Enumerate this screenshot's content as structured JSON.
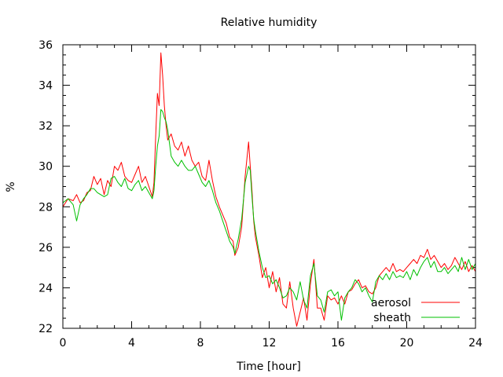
{
  "chart_data": {
    "type": "line",
    "title": "Relative humidity",
    "xlabel": "Time [hour]",
    "ylabel": "%",
    "xlim": [
      0,
      24
    ],
    "ylim": [
      22,
      36
    ],
    "x_ticks": [
      "0",
      "4",
      "8",
      "12",
      "16",
      "20",
      "24"
    ],
    "y_ticks": [
      "22",
      "24",
      "26",
      "28",
      "30",
      "32",
      "34",
      "36"
    ],
    "grid": false,
    "legend_position": "bottom-right",
    "series": [
      {
        "name": "aerosol",
        "color": "#ff0000",
        "points": [
          [
            0,
            28.0
          ],
          [
            0.3,
            28.4
          ],
          [
            0.6,
            28.3
          ],
          [
            0.8,
            28.6
          ],
          [
            1.0,
            28.2
          ],
          [
            1.2,
            28.3
          ],
          [
            1.4,
            28.7
          ],
          [
            1.6,
            28.8
          ],
          [
            1.8,
            29.5
          ],
          [
            2.0,
            29.1
          ],
          [
            2.2,
            29.4
          ],
          [
            2.4,
            28.6
          ],
          [
            2.6,
            29.3
          ],
          [
            2.8,
            29.0
          ],
          [
            3.0,
            30.0
          ],
          [
            3.2,
            29.8
          ],
          [
            3.4,
            30.2
          ],
          [
            3.6,
            29.5
          ],
          [
            3.8,
            29.3
          ],
          [
            4.0,
            29.2
          ],
          [
            4.2,
            29.6
          ],
          [
            4.4,
            30.0
          ],
          [
            4.6,
            29.2
          ],
          [
            4.8,
            29.5
          ],
          [
            5.0,
            29.0
          ],
          [
            5.2,
            28.5
          ],
          [
            5.3,
            29.2
          ],
          [
            5.4,
            31.5
          ],
          [
            5.5,
            33.6
          ],
          [
            5.6,
            33.0
          ],
          [
            5.7,
            35.6
          ],
          [
            5.8,
            34.5
          ],
          [
            5.9,
            33.0
          ],
          [
            6.0,
            32.0
          ],
          [
            6.1,
            31.3
          ],
          [
            6.3,
            31.6
          ],
          [
            6.5,
            31.0
          ],
          [
            6.7,
            30.8
          ],
          [
            6.9,
            31.2
          ],
          [
            7.1,
            30.5
          ],
          [
            7.3,
            31.0
          ],
          [
            7.5,
            30.3
          ],
          [
            7.7,
            30.0
          ],
          [
            7.9,
            30.2
          ],
          [
            8.1,
            29.5
          ],
          [
            8.3,
            29.3
          ],
          [
            8.5,
            30.3
          ],
          [
            8.7,
            29.3
          ],
          [
            8.9,
            28.5
          ],
          [
            9.1,
            28.0
          ],
          [
            9.3,
            27.6
          ],
          [
            9.5,
            27.2
          ],
          [
            9.7,
            26.5
          ],
          [
            9.9,
            26.3
          ],
          [
            10.0,
            25.6
          ],
          [
            10.2,
            26.0
          ],
          [
            10.4,
            27.0
          ],
          [
            10.6,
            29.5
          ],
          [
            10.8,
            31.2
          ],
          [
            10.9,
            30.0
          ],
          [
            11.0,
            28.8
          ],
          [
            11.1,
            27.3
          ],
          [
            11.2,
            26.5
          ],
          [
            11.4,
            25.6
          ],
          [
            11.6,
            24.5
          ],
          [
            11.8,
            25.0
          ],
          [
            12.0,
            24.0
          ],
          [
            12.2,
            24.8
          ],
          [
            12.4,
            23.8
          ],
          [
            12.6,
            24.5
          ],
          [
            12.8,
            23.2
          ],
          [
            13.0,
            23.0
          ],
          [
            13.2,
            24.3
          ],
          [
            13.4,
            23.0
          ],
          [
            13.6,
            22.1
          ],
          [
            13.8,
            22.8
          ],
          [
            14.0,
            23.5
          ],
          [
            14.2,
            22.4
          ],
          [
            14.4,
            24.2
          ],
          [
            14.6,
            25.4
          ],
          [
            14.8,
            23.0
          ],
          [
            15.0,
            23.0
          ],
          [
            15.2,
            22.4
          ],
          [
            15.4,
            23.6
          ],
          [
            15.6,
            23.4
          ],
          [
            15.8,
            23.5
          ],
          [
            16.0,
            23.2
          ],
          [
            16.2,
            23.6
          ],
          [
            16.4,
            23.2
          ],
          [
            16.6,
            23.8
          ],
          [
            16.8,
            23.9
          ],
          [
            17.0,
            24.2
          ],
          [
            17.2,
            24.4
          ],
          [
            17.4,
            24.0
          ],
          [
            17.6,
            24.1
          ],
          [
            17.8,
            23.8
          ],
          [
            18.0,
            23.7
          ],
          [
            18.2,
            24.0
          ],
          [
            18.4,
            24.6
          ],
          [
            18.6,
            24.8
          ],
          [
            18.8,
            25.0
          ],
          [
            19.0,
            24.8
          ],
          [
            19.2,
            25.2
          ],
          [
            19.4,
            24.8
          ],
          [
            19.6,
            24.9
          ],
          [
            19.8,
            24.8
          ],
          [
            20.0,
            25.0
          ],
          [
            20.2,
            25.2
          ],
          [
            20.4,
            25.4
          ],
          [
            20.6,
            25.2
          ],
          [
            20.8,
            25.6
          ],
          [
            21.0,
            25.5
          ],
          [
            21.2,
            25.9
          ],
          [
            21.4,
            25.4
          ],
          [
            21.6,
            25.6
          ],
          [
            21.8,
            25.3
          ],
          [
            22.0,
            25.0
          ],
          [
            22.2,
            25.2
          ],
          [
            22.4,
            24.9
          ],
          [
            22.6,
            25.1
          ],
          [
            22.8,
            25.5
          ],
          [
            23.0,
            25.2
          ],
          [
            23.2,
            24.9
          ],
          [
            23.4,
            25.3
          ],
          [
            23.6,
            24.8
          ],
          [
            23.8,
            25.1
          ],
          [
            24.0,
            24.8
          ]
        ]
      },
      {
        "name": "sheath",
        "color": "#00c000",
        "points": [
          [
            0,
            28.2
          ],
          [
            0.3,
            28.4
          ],
          [
            0.6,
            28.1
          ],
          [
            0.8,
            27.3
          ],
          [
            1.0,
            28.1
          ],
          [
            1.2,
            28.4
          ],
          [
            1.4,
            28.6
          ],
          [
            1.6,
            28.9
          ],
          [
            1.8,
            28.9
          ],
          [
            2.0,
            28.7
          ],
          [
            2.2,
            28.6
          ],
          [
            2.4,
            28.5
          ],
          [
            2.6,
            28.6
          ],
          [
            2.8,
            29.4
          ],
          [
            3.0,
            29.5
          ],
          [
            3.2,
            29.2
          ],
          [
            3.4,
            29.0
          ],
          [
            3.6,
            29.4
          ],
          [
            3.8,
            28.9
          ],
          [
            4.0,
            28.8
          ],
          [
            4.2,
            29.1
          ],
          [
            4.4,
            29.3
          ],
          [
            4.6,
            28.8
          ],
          [
            4.8,
            29.0
          ],
          [
            5.0,
            28.7
          ],
          [
            5.2,
            28.4
          ],
          [
            5.3,
            28.8
          ],
          [
            5.4,
            30.0
          ],
          [
            5.5,
            31.0
          ],
          [
            5.6,
            31.5
          ],
          [
            5.7,
            32.8
          ],
          [
            5.8,
            32.7
          ],
          [
            5.9,
            32.4
          ],
          [
            6.0,
            32.2
          ],
          [
            6.1,
            31.8
          ],
          [
            6.3,
            30.5
          ],
          [
            6.5,
            30.2
          ],
          [
            6.7,
            30.0
          ],
          [
            6.9,
            30.3
          ],
          [
            7.1,
            30.0
          ],
          [
            7.3,
            29.8
          ],
          [
            7.5,
            29.8
          ],
          [
            7.7,
            30.0
          ],
          [
            7.9,
            29.6
          ],
          [
            8.1,
            29.2
          ],
          [
            8.3,
            29.0
          ],
          [
            8.5,
            29.3
          ],
          [
            8.7,
            28.8
          ],
          [
            8.9,
            28.2
          ],
          [
            9.1,
            27.8
          ],
          [
            9.3,
            27.3
          ],
          [
            9.5,
            26.8
          ],
          [
            9.7,
            26.3
          ],
          [
            9.9,
            26.0
          ],
          [
            10.0,
            25.7
          ],
          [
            10.2,
            26.4
          ],
          [
            10.4,
            27.4
          ],
          [
            10.6,
            29.2
          ],
          [
            10.8,
            30.0
          ],
          [
            10.9,
            29.8
          ],
          [
            11.0,
            28.5
          ],
          [
            11.1,
            27.4
          ],
          [
            11.2,
            26.8
          ],
          [
            11.4,
            25.8
          ],
          [
            11.6,
            25.0
          ],
          [
            11.8,
            24.5
          ],
          [
            12.0,
            24.6
          ],
          [
            12.2,
            24.2
          ],
          [
            12.4,
            24.4
          ],
          [
            12.6,
            24.0
          ],
          [
            12.8,
            23.5
          ],
          [
            13.0,
            23.6
          ],
          [
            13.2,
            24.0
          ],
          [
            13.4,
            23.8
          ],
          [
            13.6,
            23.4
          ],
          [
            13.8,
            24.3
          ],
          [
            14.0,
            23.4
          ],
          [
            14.2,
            23.0
          ],
          [
            14.4,
            24.6
          ],
          [
            14.6,
            25.2
          ],
          [
            14.8,
            23.6
          ],
          [
            15.0,
            23.4
          ],
          [
            15.2,
            22.8
          ],
          [
            15.4,
            23.8
          ],
          [
            15.6,
            23.9
          ],
          [
            15.8,
            23.6
          ],
          [
            16.0,
            23.8
          ],
          [
            16.2,
            22.4
          ],
          [
            16.4,
            23.5
          ],
          [
            16.6,
            23.8
          ],
          [
            16.8,
            24.0
          ],
          [
            17.0,
            24.4
          ],
          [
            17.2,
            24.2
          ],
          [
            17.4,
            23.8
          ],
          [
            17.6,
            24.0
          ],
          [
            17.8,
            23.6
          ],
          [
            18.0,
            23.3
          ],
          [
            18.2,
            24.3
          ],
          [
            18.4,
            24.6
          ],
          [
            18.6,
            24.4
          ],
          [
            18.8,
            24.7
          ],
          [
            19.0,
            24.4
          ],
          [
            19.2,
            24.8
          ],
          [
            19.4,
            24.5
          ],
          [
            19.6,
            24.6
          ],
          [
            19.8,
            24.5
          ],
          [
            20.0,
            24.8
          ],
          [
            20.2,
            24.4
          ],
          [
            20.4,
            24.9
          ],
          [
            20.6,
            24.6
          ],
          [
            20.8,
            25.0
          ],
          [
            21.0,
            25.3
          ],
          [
            21.2,
            25.5
          ],
          [
            21.4,
            25.0
          ],
          [
            21.6,
            25.3
          ],
          [
            21.8,
            24.8
          ],
          [
            22.0,
            24.8
          ],
          [
            22.2,
            25.0
          ],
          [
            22.4,
            24.7
          ],
          [
            22.6,
            24.9
          ],
          [
            22.8,
            25.1
          ],
          [
            23.0,
            24.8
          ],
          [
            23.2,
            25.5
          ],
          [
            23.4,
            24.9
          ],
          [
            23.6,
            25.4
          ],
          [
            23.8,
            24.9
          ],
          [
            24.0,
            25.2
          ]
        ]
      }
    ]
  }
}
